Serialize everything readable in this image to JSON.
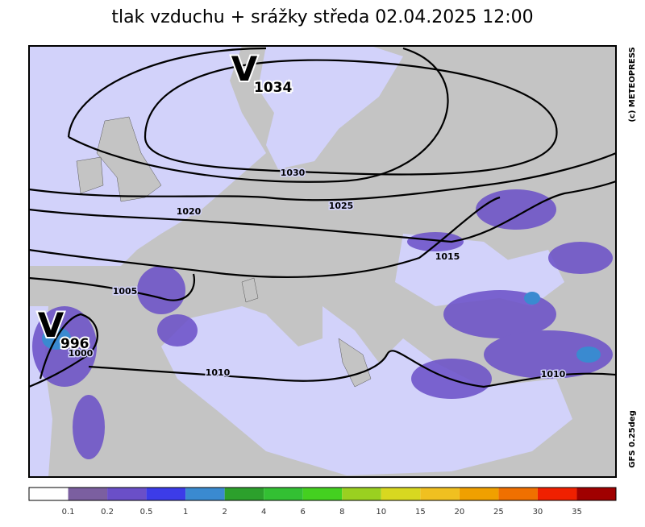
{
  "header": {
    "title": "tlak vzduchu + srážky  středa 02.04.2025 12:00"
  },
  "map": {
    "centers": [
      {
        "letter": "V",
        "value": "1034"
      },
      {
        "letter": "V",
        "value": "996"
      }
    ],
    "isobar_labels": [
      "1030",
      "1025",
      "1020",
      "1015",
      "1010",
      "1005",
      "1000",
      "1010"
    ],
    "copyright": "(c) METEOPRESS",
    "model": "GFS 0.25deg"
  },
  "legend": {
    "colors": [
      "#ffffff",
      "#7b5fa0",
      "#6a4fc8",
      "#3c3ce8",
      "#3a8ad0",
      "#2ca02c",
      "#33c033",
      "#44d020",
      "#9ad020",
      "#d8d820",
      "#f0c020",
      "#f0a000",
      "#f07000",
      "#f02000",
      "#a00000"
    ],
    "labels": [
      "0.1",
      "0.2",
      "0.5",
      "1",
      "2",
      "4",
      "6",
      "8",
      "10",
      "15",
      "20",
      "25",
      "30",
      "35"
    ]
  }
}
